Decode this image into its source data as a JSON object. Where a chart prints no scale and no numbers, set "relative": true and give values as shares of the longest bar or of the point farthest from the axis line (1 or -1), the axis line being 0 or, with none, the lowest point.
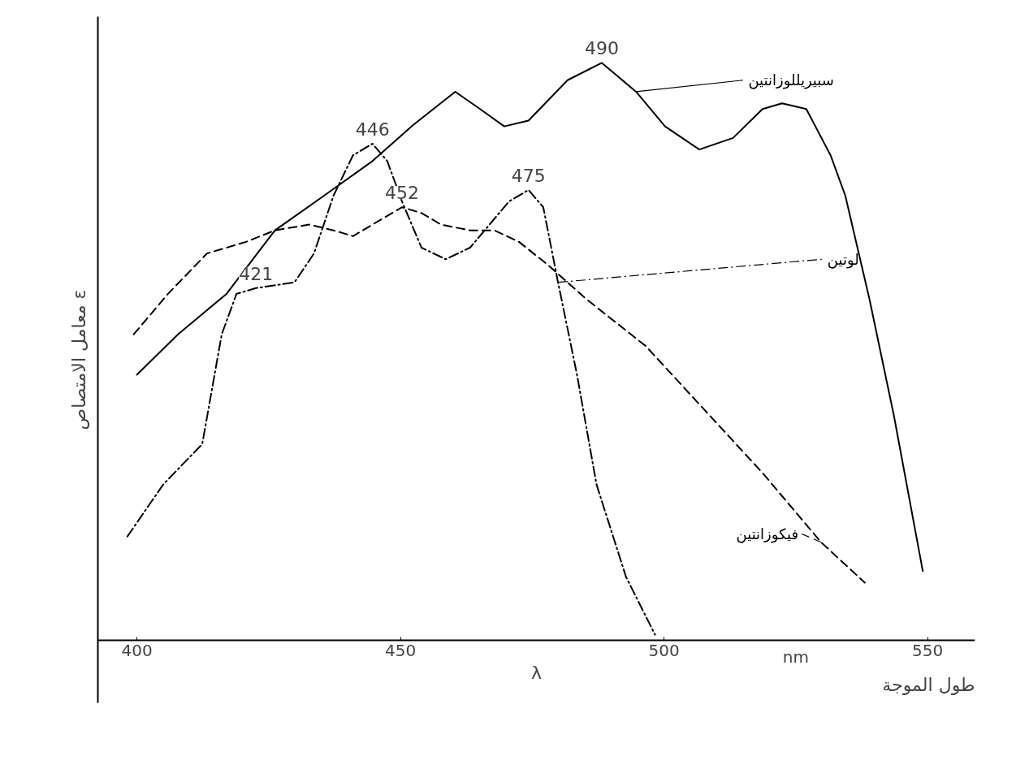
{
  "chart_data": {
    "type": "line",
    "relative": true,
    "xlabel": "λ",
    "ylabel": "معامل الامتصاص ε",
    "xlim": [
      392.6,
      559
    ],
    "xticks": [
      400,
      450,
      500,
      550
    ],
    "grid": false,
    "marker": "none",
    "series": [
      {
        "name": "سبيريللوزانتين",
        "color": "#000000",
        "line_style": "solid",
        "x": [
          400,
          407.8,
          417.0,
          426.2,
          435.5,
          444.7,
          452.1,
          460.4,
          465.1,
          469.7,
          474.3,
          481.7,
          488.2,
          494.7,
          500.2,
          506.7,
          513.1,
          518.7,
          522.4,
          527.0,
          531.6,
          534.4,
          539.0,
          543.6,
          549.1
        ],
        "values": [
          0.46,
          0.53,
          0.6,
          0.71,
          0.77,
          0.83,
          0.89,
          0.95,
          0.92,
          0.89,
          0.9,
          0.97,
          1.0,
          0.95,
          0.89,
          0.85,
          0.87,
          0.92,
          0.93,
          0.92,
          0.84,
          0.77,
          0.59,
          0.39,
          0.12
        ]
      },
      {
        "name": "لوتين",
        "color": "#000000",
        "line_style": "dashdot",
        "x": [
          398.2,
          405.0,
          412.4,
          416.1,
          418.9,
          422.6,
          429.9,
          433.6,
          437.3,
          441.0,
          444.7,
          447.5,
          450.3,
          454.0,
          458.6,
          463.2,
          466.9,
          470.6,
          474.3,
          477.1,
          479.9,
          483.5,
          487.2,
          492.8,
          498.3
        ],
        "values": [
          0.18,
          0.27,
          0.34,
          0.53,
          0.6,
          0.61,
          0.62,
          0.67,
          0.77,
          0.84,
          0.86,
          0.83,
          0.76,
          0.68,
          0.66,
          0.68,
          0.72,
          0.76,
          0.78,
          0.75,
          0.62,
          0.46,
          0.27,
          0.11,
          0.01
        ]
      },
      {
        "name": "فيكوزانتين",
        "color": "#000000",
        "line_style": "dashed",
        "x": [
          399.4,
          405.9,
          413.3,
          420.7,
          426.2,
          432.7,
          437.3,
          441.0,
          444.7,
          450.3,
          454.0,
          457.7,
          463.2,
          467.8,
          472.5,
          478.0,
          485.4,
          496.5,
          507.6,
          518.7,
          529.8,
          538.1
        ],
        "values": [
          0.53,
          0.6,
          0.67,
          0.69,
          0.71,
          0.72,
          0.71,
          0.7,
          0.72,
          0.75,
          0.74,
          0.72,
          0.71,
          0.71,
          0.69,
          0.65,
          0.59,
          0.51,
          0.4,
          0.29,
          0.17,
          0.1
        ]
      }
    ],
    "annotations": [
      {
        "text": "490",
        "x": 488.2,
        "y": 1.0
      },
      {
        "text": "446",
        "x": 444.7,
        "y": 0.86
      },
      {
        "text": "452",
        "x": 450.3,
        "y": 0.75
      },
      {
        "text": "475",
        "x": 474.3,
        "y": 0.78
      },
      {
        "text": "421",
        "x": 422.6,
        "y": 0.61
      },
      "nm",
      "طول الموجة"
    ]
  }
}
